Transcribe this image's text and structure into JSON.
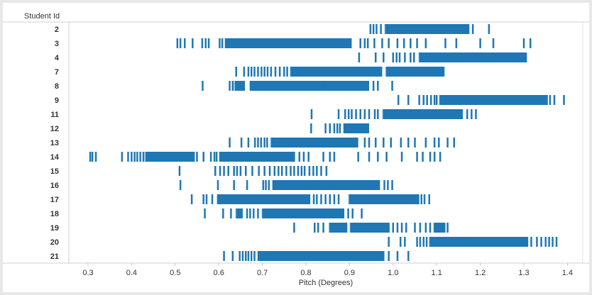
{
  "chart_data": {
    "type": "strip",
    "y_header": "Student Id",
    "xlabel": "Pitch (Degrees)",
    "xlim": [
      0.25,
      1.42
    ],
    "xticks": [
      "0.3",
      "0.4",
      "0.5",
      "0.6",
      "0.7",
      "0.8",
      "0.9",
      "1.0",
      "1.1",
      "1.2",
      "1.3",
      "1.4"
    ],
    "xtick_values": [
      0.3,
      0.4,
      0.5,
      0.6,
      0.7,
      0.8,
      0.9,
      1.0,
      1.1,
      1.2,
      1.3,
      1.4
    ],
    "color": "#1f77b4",
    "rows": [
      {
        "id": "2",
        "ranges": [
          [
            0.98,
            1.175
          ]
        ],
        "ticks": [
          0.948,
          0.955,
          0.962,
          0.972,
          1.183,
          1.22
        ]
      },
      {
        "id": "3",
        "ranges": [
          [
            0.613,
            0.905
          ]
        ],
        "ticks": [
          0.505,
          0.512,
          0.522,
          0.54,
          0.562,
          0.57,
          0.577,
          0.602,
          0.608,
          0.925,
          0.935,
          0.942,
          0.957,
          0.975,
          0.99,
          1.01,
          1.025,
          1.04,
          1.055,
          1.075,
          1.12,
          1.145,
          1.2,
          1.23,
          1.3,
          1.315
        ]
      },
      {
        "id": "4",
        "ranges": [
          [
            1.058,
            1.307
          ]
        ],
        "ticks": [
          0.922,
          0.96,
          0.978,
          1.0,
          1.008,
          1.015,
          1.027,
          1.04,
          1.048
        ]
      },
      {
        "id": "7",
        "ranges": [
          [
            0.763,
            0.975
          ],
          [
            0.982,
            1.118
          ]
        ],
        "ticks": [
          0.64,
          0.658,
          0.668,
          0.675,
          0.682,
          0.69,
          0.698,
          0.705,
          0.712,
          0.72,
          0.73,
          0.74,
          0.75,
          0.757,
          0.873,
          0.99,
          1.0,
          1.03
        ]
      },
      {
        "id": "8",
        "ranges": [
          [
            0.635,
            0.66
          ],
          [
            0.67,
            0.945
          ]
        ],
        "ticks": [
          0.563,
          0.625,
          0.632,
          0.842,
          0.955,
          0.965,
          0.998
        ]
      },
      {
        "id": "9",
        "ranges": [
          [
            1.105,
            1.355
          ]
        ],
        "ticks": [
          1.012,
          1.035,
          1.06,
          1.07,
          1.078,
          1.087,
          1.095,
          1.1,
          1.11,
          1.118,
          1.125,
          1.135,
          1.145,
          1.155,
          1.36,
          1.37,
          1.392
        ]
      },
      {
        "id": "11",
        "ranges": [
          [
            0.975,
            1.16
          ]
        ],
        "ticks": [
          0.813,
          0.875,
          0.89,
          0.898,
          0.905,
          0.915,
          0.925,
          0.935,
          0.945,
          0.958,
          0.965,
          1.17,
          1.18,
          1.19
        ]
      },
      {
        "id": "12",
        "ranges": [
          [
            0.885,
            0.945
          ]
        ],
        "ticks": [
          0.812,
          0.845,
          0.855,
          0.865,
          0.872,
          0.878
        ]
      },
      {
        "id": "13",
        "ranges": [
          [
            0.718,
            0.92
          ]
        ],
        "ticks": [
          0.625,
          0.652,
          0.668,
          0.683,
          0.69,
          0.697,
          0.705,
          0.711,
          0.935,
          0.945,
          0.96,
          0.978,
          0.995,
          1.018,
          1.035,
          1.05,
          1.075,
          1.095,
          1.105,
          1.125,
          1.14
        ]
      },
      {
        "id": "14",
        "ranges": [
          [
            0.43,
            0.545
          ],
          [
            0.6,
            0.775
          ]
        ],
        "ticks": [
          0.305,
          0.31,
          0.318,
          0.378,
          0.392,
          0.4,
          0.407,
          0.413,
          0.42,
          0.427,
          0.55,
          0.565,
          0.582,
          0.59,
          0.595,
          0.785,
          0.795,
          0.806,
          0.84,
          0.855,
          0.865,
          0.92,
          0.945,
          0.965,
          0.985,
          1.02,
          1.055,
          1.068,
          1.085,
          1.095,
          1.108
        ]
      },
      {
        "id": "15",
        "ranges": [],
        "ticks": [
          0.51,
          0.592,
          0.603,
          0.612,
          0.622,
          0.635,
          0.642,
          0.65,
          0.662,
          0.677,
          0.692,
          0.705,
          0.717,
          0.728,
          0.737,
          0.745,
          0.755,
          0.765,
          0.773,
          0.782,
          0.79,
          0.797,
          0.808,
          0.817,
          0.825,
          0.835,
          0.847
        ]
      },
      {
        "id": "16",
        "ranges": [
          [
            0.722,
            0.97
          ]
        ],
        "ticks": [
          0.512,
          0.598,
          0.635,
          0.665,
          0.702,
          0.708,
          0.715,
          0.98,
          0.988,
          0.998
        ]
      },
      {
        "id": "17",
        "ranges": [
          [
            0.595,
            0.81
          ],
          [
            0.897,
            1.06
          ]
        ],
        "ticks": [
          0.538,
          0.565,
          0.572,
          0.585,
          0.818,
          0.825,
          0.835,
          0.845,
          0.855,
          0.865,
          0.875,
          1.065,
          1.072,
          1.083
        ]
      },
      {
        "id": "18",
        "ranges": [
          [
            0.638,
            0.655
          ],
          [
            0.698,
            0.888
          ]
        ],
        "ticks": [
          0.568,
          0.61,
          0.628,
          0.665,
          0.672,
          0.68,
          0.69,
          0.897,
          0.907,
          0.928
        ]
      },
      {
        "id": "19",
        "ranges": [
          [
            0.852,
            0.895
          ],
          [
            0.9,
            0.992
          ],
          [
            1.092,
            1.12
          ]
        ],
        "ticks": [
          0.773,
          0.82,
          0.828,
          0.84,
          1.0,
          1.01,
          1.02,
          1.03,
          1.05,
          1.062,
          1.075,
          1.085,
          1.125
        ]
      },
      {
        "id": "20",
        "ranges": [
          [
            1.082,
            1.31
          ]
        ],
        "ticks": [
          0.99,
          1.017,
          1.027,
          1.055,
          1.062,
          1.07,
          1.077,
          1.317,
          1.33,
          1.34,
          1.35,
          1.358,
          1.366,
          1.375
        ]
      },
      {
        "id": "21",
        "ranges": [
          [
            0.688,
            0.98
          ]
        ],
        "ticks": [
          0.612,
          0.632,
          0.648,
          0.655,
          0.662,
          0.668,
          0.675,
          0.682,
          0.99,
          1.01,
          1.035
        ]
      }
    ]
  }
}
